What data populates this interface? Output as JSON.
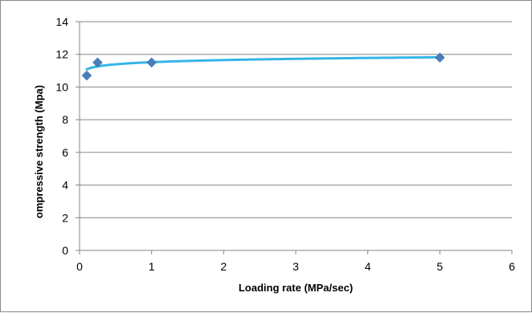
{
  "chart_data": {
    "type": "scatter",
    "title": "",
    "xlabel": "Loading rate (MPa/sec)",
    "ylabel": "ompressive strength (Mpa)",
    "xlim": [
      0,
      6
    ],
    "ylim": [
      0,
      14
    ],
    "x_ticks": [
      "0",
      "1",
      "2",
      "3",
      "4",
      "5",
      "6"
    ],
    "y_ticks": [
      "0",
      "2",
      "4",
      "6",
      "8",
      "10",
      "12",
      "14"
    ],
    "grid": "horizontal",
    "legend": "none",
    "series": [
      {
        "points": [
          {
            "x": 0.1,
            "y": 10.7
          },
          {
            "x": 0.25,
            "y": 11.5
          },
          {
            "x": 1.0,
            "y": 11.5
          },
          {
            "x": 5.0,
            "y": 11.8
          }
        ],
        "marker": "diamond",
        "color": "#4a7ebb"
      }
    ],
    "trendline": {
      "kind": "logarithmic",
      "color": "#33b5e5",
      "a": 11.52,
      "b": 0.1875,
      "x_from": 0.1,
      "x_to": 5.0
    }
  }
}
